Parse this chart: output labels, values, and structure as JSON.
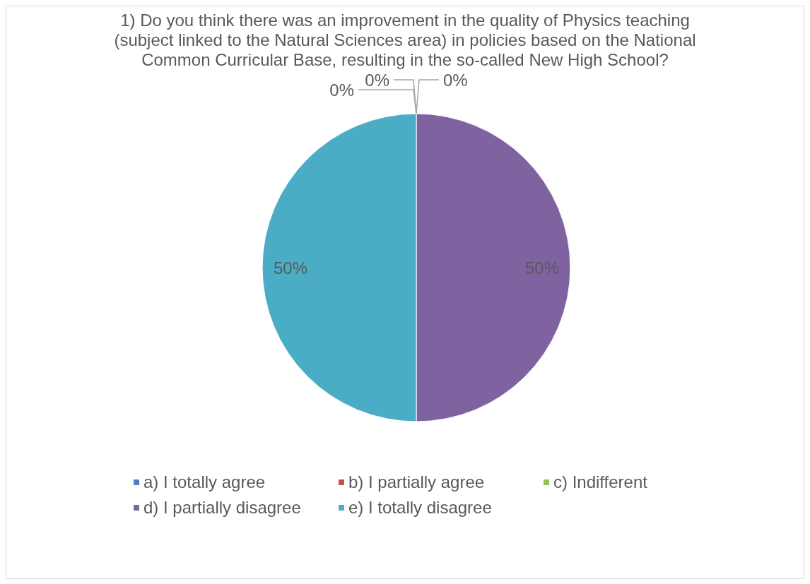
{
  "chart_data": {
    "type": "pie",
    "title": "1) Do you think there was an improvement in the quality of Physics teaching (subject linked to the Natural Sciences area) in policies based on the National Common Curricular Base, resulting in the so-called New High School?",
    "categories": [
      "a) I totally agree",
      "b) I partially agree",
      "c) Indifferent",
      "d) I partially disagree",
      "e) I totally disagree"
    ],
    "values": [
      0,
      0,
      0,
      50,
      50
    ],
    "value_labels": [
      "0%",
      "0%",
      "0%",
      "50%",
      "50%"
    ],
    "colors": [
      "#4f81bd",
      "#c0504d",
      "#9bbb59",
      "#7f63a1",
      "#4bacc6"
    ],
    "legend": "bottom"
  }
}
